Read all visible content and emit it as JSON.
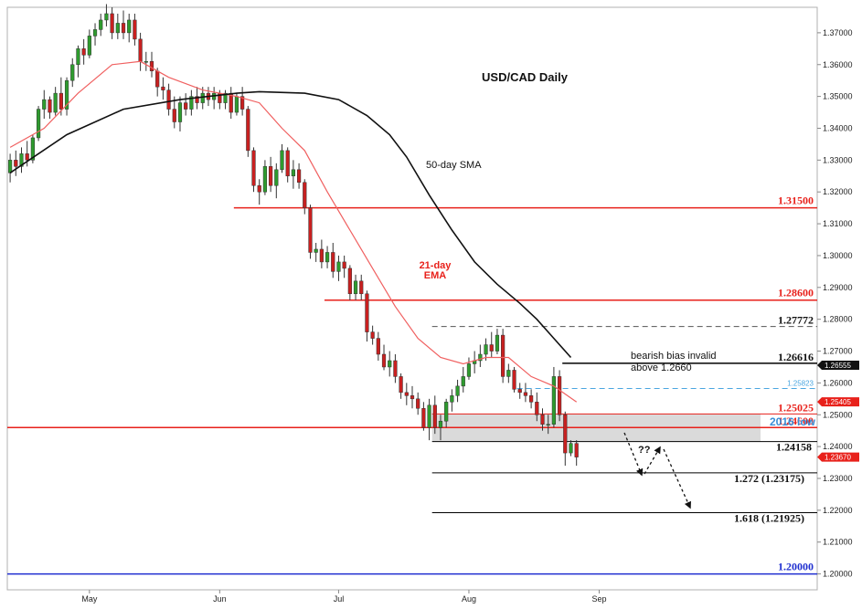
{
  "chart_data": {
    "type": "candlestick",
    "title": "USD/CAD Daily",
    "ylim": [
      1.195,
      1.378
    ],
    "y_ticks": [
      "1.37000",
      "1.36000",
      "1.35000",
      "1.34000",
      "1.33000",
      "1.32000",
      "1.31000",
      "1.30000",
      "1.29000",
      "1.28000",
      "1.27000",
      "1.26000",
      "1.25000",
      "1.24000",
      "1.23000",
      "1.22000",
      "1.21000",
      "1.20000"
    ],
    "y_tick_values": [
      1.37,
      1.36,
      1.35,
      1.34,
      1.33,
      1.32,
      1.31,
      1.3,
      1.29,
      1.28,
      1.27,
      1.26,
      1.25,
      1.24,
      1.23,
      1.22,
      1.21,
      1.2
    ],
    "x_ticks": [
      {
        "label": "May",
        "index": 14
      },
      {
        "label": "Jun",
        "index": 37
      },
      {
        "label": "Jul",
        "index": 58
      },
      {
        "label": "Aug",
        "index": 81
      },
      {
        "label": "Sep",
        "index": 104
      }
    ],
    "n_slots": 143,
    "candles": [
      {
        "o": 1.326,
        "h": 1.332,
        "l": 1.323,
        "c": 1.33
      },
      {
        "o": 1.33,
        "h": 1.333,
        "l": 1.325,
        "c": 1.328
      },
      {
        "o": 1.328,
        "h": 1.334,
        "l": 1.326,
        "c": 1.332
      },
      {
        "o": 1.332,
        "h": 1.336,
        "l": 1.328,
        "c": 1.33
      },
      {
        "o": 1.33,
        "h": 1.338,
        "l": 1.329,
        "c": 1.337
      },
      {
        "o": 1.337,
        "h": 1.347,
        "l": 1.336,
        "c": 1.346
      },
      {
        "o": 1.346,
        "h": 1.352,
        "l": 1.343,
        "c": 1.349
      },
      {
        "o": 1.349,
        "h": 1.35,
        "l": 1.343,
        "c": 1.345
      },
      {
        "o": 1.345,
        "h": 1.353,
        "l": 1.344,
        "c": 1.351
      },
      {
        "o": 1.351,
        "h": 1.356,
        "l": 1.344,
        "c": 1.346
      },
      {
        "o": 1.346,
        "h": 1.356,
        "l": 1.344,
        "c": 1.355
      },
      {
        "o": 1.355,
        "h": 1.362,
        "l": 1.353,
        "c": 1.36
      },
      {
        "o": 1.36,
        "h": 1.366,
        "l": 1.356,
        "c": 1.365
      },
      {
        "o": 1.365,
        "h": 1.368,
        "l": 1.36,
        "c": 1.363
      },
      {
        "o": 1.363,
        "h": 1.371,
        "l": 1.362,
        "c": 1.369
      },
      {
        "o": 1.369,
        "h": 1.373,
        "l": 1.366,
        "c": 1.371
      },
      {
        "o": 1.371,
        "h": 1.376,
        "l": 1.369,
        "c": 1.374
      },
      {
        "o": 1.374,
        "h": 1.379,
        "l": 1.372,
        "c": 1.376
      },
      {
        "o": 1.376,
        "h": 1.378,
        "l": 1.368,
        "c": 1.37
      },
      {
        "o": 1.37,
        "h": 1.376,
        "l": 1.368,
        "c": 1.373
      },
      {
        "o": 1.373,
        "h": 1.377,
        "l": 1.368,
        "c": 1.37
      },
      {
        "o": 1.37,
        "h": 1.376,
        "l": 1.367,
        "c": 1.374
      },
      {
        "o": 1.374,
        "h": 1.376,
        "l": 1.366,
        "c": 1.368
      },
      {
        "o": 1.368,
        "h": 1.37,
        "l": 1.358,
        "c": 1.361
      },
      {
        "o": 1.361,
        "h": 1.364,
        "l": 1.358,
        "c": 1.361
      },
      {
        "o": 1.361,
        "h": 1.364,
        "l": 1.356,
        "c": 1.358
      },
      {
        "o": 1.358,
        "h": 1.359,
        "l": 1.35,
        "c": 1.353
      },
      {
        "o": 1.353,
        "h": 1.356,
        "l": 1.349,
        "c": 1.352
      },
      {
        "o": 1.352,
        "h": 1.354,
        "l": 1.344,
        "c": 1.346
      },
      {
        "o": 1.346,
        "h": 1.35,
        "l": 1.34,
        "c": 1.342
      },
      {
        "o": 1.342,
        "h": 1.35,
        "l": 1.339,
        "c": 1.348
      },
      {
        "o": 1.348,
        "h": 1.351,
        "l": 1.344,
        "c": 1.346
      },
      {
        "o": 1.346,
        "h": 1.352,
        "l": 1.344,
        "c": 1.35
      },
      {
        "o": 1.35,
        "h": 1.353,
        "l": 1.346,
        "c": 1.348
      },
      {
        "o": 1.348,
        "h": 1.353,
        "l": 1.346,
        "c": 1.351
      },
      {
        "o": 1.351,
        "h": 1.353,
        "l": 1.347,
        "c": 1.349
      },
      {
        "o": 1.349,
        "h": 1.353,
        "l": 1.346,
        "c": 1.351
      },
      {
        "o": 1.351,
        "h": 1.352,
        "l": 1.346,
        "c": 1.348
      },
      {
        "o": 1.348,
        "h": 1.352,
        "l": 1.346,
        "c": 1.351
      },
      {
        "o": 1.351,
        "h": 1.353,
        "l": 1.343,
        "c": 1.345
      },
      {
        "o": 1.345,
        "h": 1.351,
        "l": 1.344,
        "c": 1.35
      },
      {
        "o": 1.35,
        "h": 1.353,
        "l": 1.344,
        "c": 1.346
      },
      {
        "o": 1.346,
        "h": 1.347,
        "l": 1.331,
        "c": 1.333
      },
      {
        "o": 1.333,
        "h": 1.334,
        "l": 1.32,
        "c": 1.322
      },
      {
        "o": 1.322,
        "h": 1.324,
        "l": 1.316,
        "c": 1.32
      },
      {
        "o": 1.32,
        "h": 1.33,
        "l": 1.319,
        "c": 1.328
      },
      {
        "o": 1.328,
        "h": 1.331,
        "l": 1.32,
        "c": 1.322
      },
      {
        "o": 1.322,
        "h": 1.329,
        "l": 1.318,
        "c": 1.327
      },
      {
        "o": 1.327,
        "h": 1.335,
        "l": 1.326,
        "c": 1.333
      },
      {
        "o": 1.333,
        "h": 1.334,
        "l": 1.323,
        "c": 1.325
      },
      {
        "o": 1.325,
        "h": 1.33,
        "l": 1.321,
        "c": 1.327
      },
      {
        "o": 1.327,
        "h": 1.329,
        "l": 1.321,
        "c": 1.323
      },
      {
        "o": 1.323,
        "h": 1.324,
        "l": 1.313,
        "c": 1.315
      },
      {
        "o": 1.315,
        "h": 1.316,
        "l": 1.299,
        "c": 1.301
      },
      {
        "o": 1.301,
        "h": 1.304,
        "l": 1.298,
        "c": 1.302
      },
      {
        "o": 1.302,
        "h": 1.305,
        "l": 1.296,
        "c": 1.298
      },
      {
        "o": 1.298,
        "h": 1.303,
        "l": 1.296,
        "c": 1.301
      },
      {
        "o": 1.301,
        "h": 1.304,
        "l": 1.293,
        "c": 1.295
      },
      {
        "o": 1.295,
        "h": 1.3,
        "l": 1.292,
        "c": 1.298
      },
      {
        "o": 1.298,
        "h": 1.3,
        "l": 1.293,
        "c": 1.296
      },
      {
        "o": 1.296,
        "h": 1.297,
        "l": 1.286,
        "c": 1.288
      },
      {
        "o": 1.288,
        "h": 1.294,
        "l": 1.286,
        "c": 1.292
      },
      {
        "o": 1.292,
        "h": 1.294,
        "l": 1.286,
        "c": 1.288
      },
      {
        "o": 1.288,
        "h": 1.289,
        "l": 1.273,
        "c": 1.276
      },
      {
        "o": 1.276,
        "h": 1.278,
        "l": 1.272,
        "c": 1.274
      },
      {
        "o": 1.274,
        "h": 1.276,
        "l": 1.267,
        "c": 1.269
      },
      {
        "o": 1.269,
        "h": 1.272,
        "l": 1.264,
        "c": 1.265
      },
      {
        "o": 1.265,
        "h": 1.27,
        "l": 1.262,
        "c": 1.267
      },
      {
        "o": 1.267,
        "h": 1.269,
        "l": 1.26,
        "c": 1.262
      },
      {
        "o": 1.262,
        "h": 1.263,
        "l": 1.255,
        "c": 1.257
      },
      {
        "o": 1.257,
        "h": 1.26,
        "l": 1.253,
        "c": 1.256
      },
      {
        "o": 1.256,
        "h": 1.259,
        "l": 1.252,
        "c": 1.255
      },
      {
        "o": 1.255,
        "h": 1.257,
        "l": 1.25,
        "c": 1.252
      },
      {
        "o": 1.252,
        "h": 1.254,
        "l": 1.245,
        "c": 1.246
      },
      {
        "o": 1.246,
        "h": 1.255,
        "l": 1.242,
        "c": 1.253
      },
      {
        "o": 1.253,
        "h": 1.256,
        "l": 1.244,
        "c": 1.246
      },
      {
        "o": 1.246,
        "h": 1.25,
        "l": 1.242,
        "c": 1.248
      },
      {
        "o": 1.248,
        "h": 1.255,
        "l": 1.246,
        "c": 1.254
      },
      {
        "o": 1.254,
        "h": 1.258,
        "l": 1.251,
        "c": 1.256
      },
      {
        "o": 1.256,
        "h": 1.261,
        "l": 1.254,
        "c": 1.259
      },
      {
        "o": 1.259,
        "h": 1.265,
        "l": 1.257,
        "c": 1.262
      },
      {
        "o": 1.262,
        "h": 1.268,
        "l": 1.261,
        "c": 1.266
      },
      {
        "o": 1.266,
        "h": 1.27,
        "l": 1.263,
        "c": 1.267
      },
      {
        "o": 1.267,
        "h": 1.272,
        "l": 1.265,
        "c": 1.269
      },
      {
        "o": 1.269,
        "h": 1.274,
        "l": 1.267,
        "c": 1.272
      },
      {
        "o": 1.272,
        "h": 1.276,
        "l": 1.268,
        "c": 1.27
      },
      {
        "o": 1.27,
        "h": 1.277,
        "l": 1.269,
        "c": 1.275
      },
      {
        "o": 1.275,
        "h": 1.277,
        "l": 1.26,
        "c": 1.262
      },
      {
        "o": 1.262,
        "h": 1.266,
        "l": 1.26,
        "c": 1.264
      },
      {
        "o": 1.264,
        "h": 1.265,
        "l": 1.257,
        "c": 1.258
      },
      {
        "o": 1.258,
        "h": 1.26,
        "l": 1.255,
        "c": 1.257
      },
      {
        "o": 1.257,
        "h": 1.26,
        "l": 1.254,
        "c": 1.256
      },
      {
        "o": 1.256,
        "h": 1.258,
        "l": 1.252,
        "c": 1.254
      },
      {
        "o": 1.254,
        "h": 1.257,
        "l": 1.248,
        "c": 1.25
      },
      {
        "o": 1.25,
        "h": 1.252,
        "l": 1.245,
        "c": 1.247
      },
      {
        "o": 1.247,
        "h": 1.25,
        "l": 1.244,
        "c": 1.247
      },
      {
        "o": 1.247,
        "h": 1.265,
        "l": 1.246,
        "c": 1.262
      },
      {
        "o": 1.262,
        "h": 1.264,
        "l": 1.248,
        "c": 1.25
      },
      {
        "o": 1.25,
        "h": 1.251,
        "l": 1.234,
        "c": 1.238
      },
      {
        "o": 1.238,
        "h": 1.242,
        "l": 1.237,
        "c": 1.241
      },
      {
        "o": 1.241,
        "h": 1.242,
        "l": 1.234,
        "c": 1.2367
      }
    ],
    "sma50": [
      [
        0,
        1.326
      ],
      [
        10,
        1.338
      ],
      [
        20,
        1.346
      ],
      [
        30,
        1.349
      ],
      [
        40,
        1.351
      ],
      [
        44,
        1.3515
      ],
      [
        52,
        1.351
      ],
      [
        58,
        1.349
      ],
      [
        63,
        1.344
      ],
      [
        67,
        1.338
      ],
      [
        70,
        1.331
      ],
      [
        74,
        1.319
      ],
      [
        78,
        1.308
      ],
      [
        82,
        1.298
      ],
      [
        86,
        1.291
      ],
      [
        90,
        1.285
      ],
      [
        93,
        1.28
      ],
      [
        96,
        1.274
      ],
      [
        99,
        1.268
      ]
    ],
    "ema21": [
      [
        0,
        1.334
      ],
      [
        6,
        1.34
      ],
      [
        12,
        1.351
      ],
      [
        18,
        1.36
      ],
      [
        23,
        1.361
      ],
      [
        28,
        1.356
      ],
      [
        34,
        1.352
      ],
      [
        40,
        1.35
      ],
      [
        44,
        1.348
      ],
      [
        48,
        1.34
      ],
      [
        52,
        1.333
      ],
      [
        56,
        1.32
      ],
      [
        60,
        1.308
      ],
      [
        64,
        1.296
      ],
      [
        68,
        1.284
      ],
      [
        72,
        1.274
      ],
      [
        76,
        1.268
      ],
      [
        80,
        1.266
      ],
      [
        84,
        1.268
      ],
      [
        88,
        1.268
      ],
      [
        92,
        1.262
      ],
      [
        96,
        1.259
      ],
      [
        100,
        1.254
      ]
    ],
    "levels": [
      {
        "value": 1.315,
        "label": "1.31500",
        "color": "#e8211b",
        "start": 40,
        "width": 1.5
      },
      {
        "value": 1.286,
        "label": "1.28600",
        "color": "#e8211b",
        "start": 56,
        "width": 1.5
      },
      {
        "value": 1.27772,
        "label": "1.27772",
        "color": "#555555",
        "start": 75,
        "width": 1,
        "dash": true
      },
      {
        "value": 1.26616,
        "label": "1.26616",
        "color": "#000000",
        "start": 98,
        "width": 1.5
      },
      {
        "value": 1.25823,
        "label": "1.25823",
        "color": "#4aa6e0",
        "start": 90,
        "width": 1,
        "dash": true
      },
      {
        "value": 1.25025,
        "label": "1.25025",
        "color": "#e8211b",
        "start": 75,
        "width": 1
      },
      {
        "value": 1.246,
        "label": "1.24600",
        "color": "#e8211b",
        "start": 0,
        "width": 1.5
      },
      {
        "value": 1.24158,
        "label": "1.24158",
        "color": "#000000",
        "start": 75,
        "width": 1
      },
      {
        "value": 1.23175,
        "label": "1.272 (1.23175)",
        "color": "#000000",
        "start": 75,
        "width": 1
      },
      {
        "value": 1.21925,
        "label": "1.618 (1.21925)",
        "color": "#000000",
        "start": 75,
        "width": 1
      },
      {
        "value": 1.2,
        "label": "1.20000",
        "color": "#1f2fd0",
        "start": 0,
        "width": 1.5
      }
    ],
    "zone": {
      "top": 1.25025,
      "bottom": 1.24158,
      "start": 75
    },
    "price_tags": [
      {
        "value": 1.26555,
        "label": "1.26555",
        "color": "#111111"
      },
      {
        "value": 1.25405,
        "label": "1.25405",
        "color": "#e8211b"
      },
      {
        "value": 1.2367,
        "label": "1.23670",
        "color": "#e8211b"
      }
    ],
    "annotations": {
      "sma_label": "50-day SMA",
      "ema_label_line1": "21-day",
      "ema_label_line2": "EMA",
      "bias_line1": "bearish bias invalid",
      "bias_line2": "above 1.2660",
      "low_2016": "2016 low",
      "question": "??"
    },
    "colors": {
      "bull": "#2e9b2e",
      "bear": "#c82020",
      "sma": "#111111",
      "ema": "#f06060",
      "red": "#e8211b",
      "blue_label": "#3a8fd8",
      "zone": "#d4d4d4"
    }
  }
}
